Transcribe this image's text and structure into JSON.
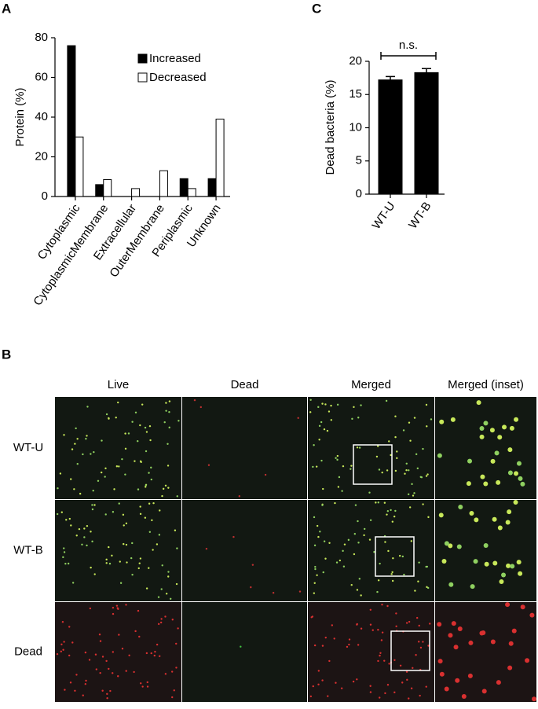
{
  "panel_labels": [
    "A",
    "C",
    "B"
  ],
  "chart_data": [
    {
      "type": "bar",
      "y_label": "Protein (%)",
      "categories": [
        "Cytoplasmic",
        "CytoplasmicMembrane",
        "Extracellular",
        "OuterMembrane",
        "Periplasmic",
        "Unknown"
      ],
      "series": [
        {
          "name": "Increased",
          "color": "#000000",
          "values": [
            76,
            6,
            0,
            0,
            9,
            9
          ]
        },
        {
          "name": "Decreased",
          "color": "#ffffff",
          "values": [
            30,
            8.5,
            4,
            13,
            4,
            39
          ]
        }
      ],
      "ylim": [
        0,
        80
      ],
      "yticks": [
        0,
        20,
        40,
        60,
        80
      ],
      "legend": "upper-right"
    },
    {
      "type": "bar",
      "y_label": "Dead bacteria (%)",
      "categories": [
        "WT-U",
        "WT-B"
      ],
      "series": [
        {
          "color": "#000000",
          "values": [
            17.2,
            18.3
          ],
          "errors": [
            0.5,
            0.6
          ]
        }
      ],
      "ylim": [
        0,
        20
      ],
      "yticks": [
        0,
        5,
        10,
        15,
        20
      ],
      "annotation": "n.s."
    }
  ],
  "microscopy": {
    "columns": [
      "Live",
      "Dead",
      "Merged",
      "Merged (inset)"
    ],
    "rows": [
      "WT-U",
      "WT-B",
      "Dead"
    ]
  }
}
